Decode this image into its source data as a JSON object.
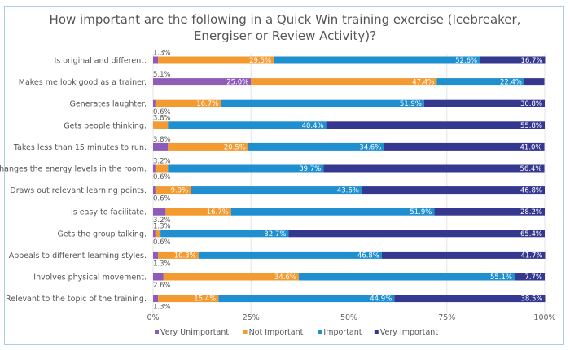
{
  "chart_data": {
    "type": "bar",
    "orientation": "horizontal-stacked-100",
    "title_line1": "How important are the following in a Quick Win training exercise (Icebreaker,",
    "title_line2": "Energiser or Review Activity)?",
    "xlabel": "",
    "ylabel": "",
    "xlim": [
      0,
      100
    ],
    "x_ticks": [
      "0%",
      "25%",
      "50%",
      "75%",
      "100%"
    ],
    "grid": true,
    "legend_position": "bottom-left",
    "categories": [
      "Is original and different.",
      "Makes me look good as a trainer.",
      "Generates laughter.",
      "Gets people thinking.",
      "Takes less than 15 minutes to run.",
      "Changes the energy levels in the room.",
      "Draws out relevant learning points.",
      "Is easy to facilitate.",
      "Gets the group talking.",
      "Appeals to different learning styles.",
      "Involves physical movement.",
      "Relevant to the topic of the training."
    ],
    "series": [
      {
        "name": "Very Unimportant",
        "color": "#8e5cb8",
        "values": [
          1.3,
          25.0,
          0.6,
          0,
          3.8,
          0.6,
          0.6,
          3.2,
          0.6,
          1.3,
          2.6,
          1.3
        ]
      },
      {
        "name": "Not Important",
        "color": "#f39a31",
        "values": [
          29.5,
          47.4,
          16.7,
          3.8,
          20.5,
          3.2,
          9.0,
          16.7,
          1.3,
          10.3,
          34.6,
          15.4
        ]
      },
      {
        "name": "Important",
        "color": "#1f8fd0",
        "values": [
          52.6,
          22.4,
          51.9,
          40.4,
          34.6,
          39.7,
          43.6,
          51.9,
          32.7,
          46.8,
          55.1,
          44.9
        ]
      },
      {
        "name": "Very Important",
        "color": "#34388f",
        "values": [
          16.7,
          5.1,
          30.8,
          55.8,
          41.0,
          56.4,
          46.8,
          28.2,
          65.4,
          41.7,
          7.7,
          38.5
        ]
      }
    ]
  }
}
